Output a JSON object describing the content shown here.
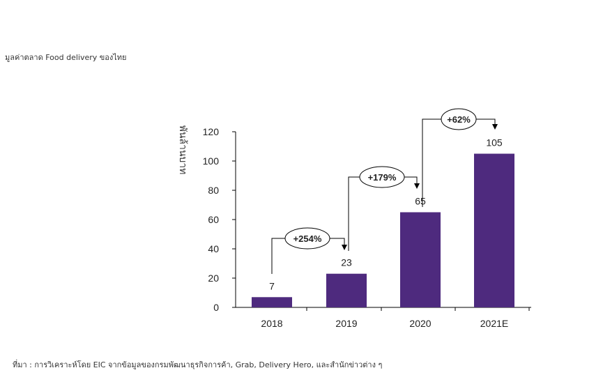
{
  "title": "มูลค่าตลาด Food delivery ของไทย",
  "source": "ที่มา : การวิเคราะห์โดย EIC จากข้อมูลของกรมพัฒนาธุรกิจการค้า, Grab, Delivery Hero, และสำนักข่าวต่าง ๆ",
  "chart_data": {
    "type": "bar",
    "categories": [
      "2018",
      "2019",
      "2020",
      "2021E"
    ],
    "values": [
      7,
      23,
      65,
      105
    ],
    "data_labels": [
      "7",
      "23",
      "65",
      "105"
    ],
    "ylabel": "พันล้านบาท",
    "xlabel": "",
    "ylim": [
      0,
      120
    ],
    "yticks": [
      0,
      20,
      40,
      60,
      80,
      100,
      120
    ],
    "grid": false,
    "bar_color": "#4E2A7E",
    "growth_annotations": [
      {
        "from": "2018",
        "to": "2019",
        "label": "+254%"
      },
      {
        "from": "2019",
        "to": "2020",
        "label": "+179%"
      },
      {
        "from": "2020",
        "to": "2021E",
        "label": "+62%"
      }
    ]
  }
}
